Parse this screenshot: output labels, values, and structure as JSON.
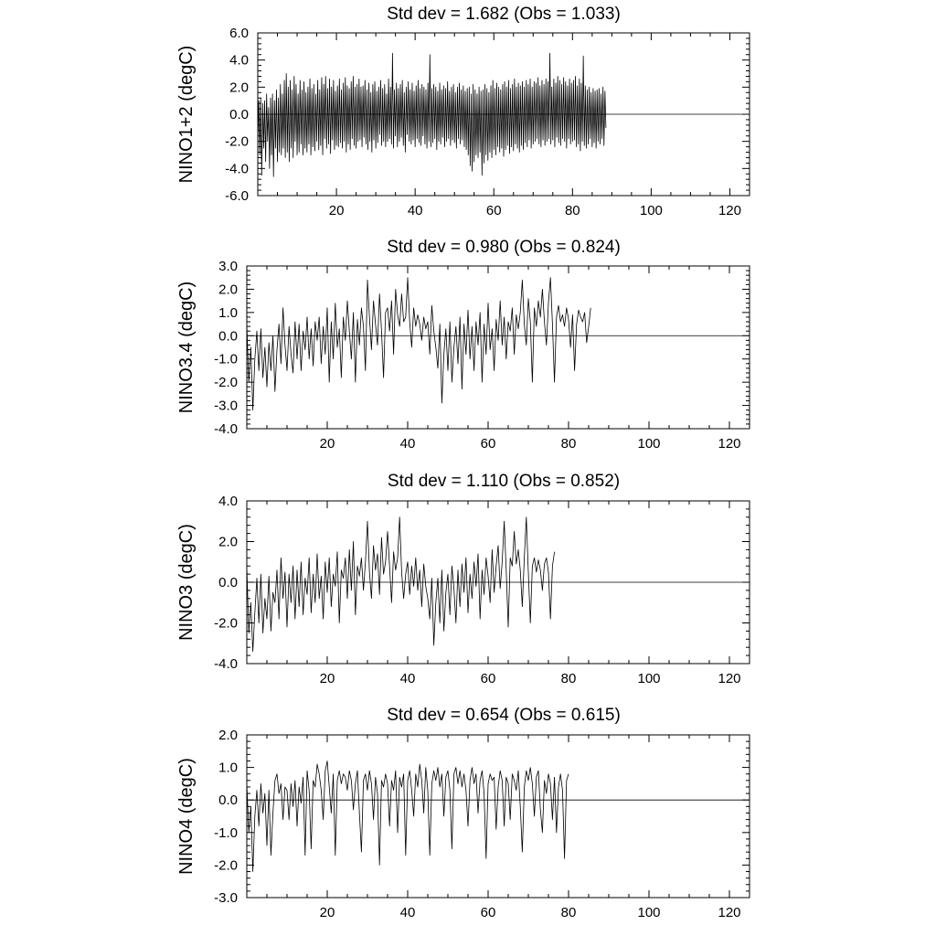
{
  "chart_data": [
    {
      "type": "line",
      "title": "Std dev = 1.682 (Obs = 1.033)",
      "xlabel": "",
      "ylabel": "NINO1+2 (degC)",
      "xlim": [
        0,
        125
      ],
      "ylim": [
        -6.0,
        6.0
      ],
      "x_ticks": [
        20,
        40,
        60,
        80,
        100,
        120
      ],
      "y_ticks": [
        "-6.0",
        "-4.0",
        "-2.0",
        "0.0",
        "2.0",
        "4.0",
        "6.0"
      ],
      "grid": false,
      "series": [
        {
          "x_start": 0,
          "x_step": 0.25,
          "values": [
            -2.0,
            1.0,
            -3.0,
            1.2,
            -4.5,
            0.8,
            -2.5,
            1.0,
            -3.5,
            1.5,
            -2.0,
            0.5,
            -4.0,
            1.2,
            -3.0,
            1.5,
            -4.6,
            1.0,
            -2.5,
            1.8,
            -3.5,
            1.2,
            -2.8,
            2.2,
            -3.0,
            1.5,
            -2.5,
            2.5,
            -3.2,
            3.0,
            -2.8,
            2.0,
            -3.5,
            2.5,
            -2.5,
            1.8,
            -3.2,
            2.8,
            -2.0,
            2.2,
            -3.0,
            1.5,
            -2.8,
            2.5,
            -2.2,
            1.8,
            -3.0,
            2.4,
            -2.5,
            1.6,
            -2.8,
            2.0,
            -2.2,
            2.6,
            -3.0,
            1.9,
            -2.4,
            2.2,
            -2.7,
            1.5,
            -2.0,
            2.5,
            -2.6,
            1.8,
            -2.3,
            2.7,
            -3.0,
            2.2,
            -1.8,
            2.8,
            -2.5,
            1.9,
            -2.2,
            2.6,
            -2.9,
            2.0,
            -1.9,
            2.5,
            -2.6,
            1.7,
            -2.3,
            2.1,
            -2.4,
            2.6,
            -2.1,
            1.8,
            -2.5,
            2.3,
            -2.0,
            2.7,
            -2.8,
            2.1,
            -2.2,
            1.9,
            -2.6,
            2.4,
            -1.8,
            2.8,
            -2.3,
            2.0,
            -2.5,
            2.2,
            -2.0,
            2.6,
            -1.9,
            2.0,
            -2.4,
            2.1,
            -1.7,
            2.5,
            -2.2,
            1.8,
            -2.6,
            2.3,
            -2.0,
            1.6,
            -2.8,
            2.2,
            -1.9,
            2.4,
            -2.5,
            1.7,
            -2.1,
            2.0,
            -1.5,
            2.5,
            -2.3,
            1.9,
            -2.0,
            2.2,
            -2.4,
            1.5,
            -2.0,
            2.6,
            -1.8,
            2.0,
            -2.2,
            4.5,
            -2.5,
            1.8,
            -1.6,
            2.3,
            -2.4,
            1.9,
            -2.0,
            2.2,
            -1.7,
            2.5,
            -2.3,
            1.6,
            -2.8,
            2.0,
            -1.5,
            2.4,
            -2.0,
            1.8,
            -2.2,
            2.3,
            -1.9,
            1.7,
            -2.4,
            2.1,
            -1.8,
            2.5,
            -2.1,
            1.9,
            -2.3,
            2.2,
            -1.6,
            2.0,
            -2.2,
            1.8,
            -2.5,
            2.3,
            -2.0,
            4.4,
            -2.4,
            1.9,
            -2.1,
            2.2,
            -1.8,
            2.0,
            -2.6,
            1.7,
            -2.0,
            2.3,
            -2.2,
            1.8,
            -1.7,
            2.1,
            -2.4,
            1.9,
            -2.0,
            2.4,
            -1.8,
            1.7,
            -2.3,
            2.0,
            -1.9,
            2.2,
            -2.1,
            1.6,
            -2.5,
            2.0,
            -1.8,
            2.3,
            -2.2,
            1.8,
            -1.9,
            2.1,
            -2.4,
            1.7,
            -2.6,
            1.9,
            -3.0,
            2.0,
            -3.8,
            1.5,
            -4.2,
            2.2,
            -3.5,
            1.8,
            -3.0,
            1.5,
            -3.2,
            2.0,
            -2.8,
            1.7,
            -4.5,
            1.8,
            -3.6,
            2.2,
            -3.0,
            1.9,
            -3.4,
            1.6,
            -2.8,
            2.1,
            -3.2,
            2.5,
            -2.6,
            1.9,
            -3.0,
            2.3,
            -2.4,
            2.0,
            -2.8,
            1.8,
            -2.5,
            2.2,
            -3.1,
            2.4,
            -2.6,
            2.0,
            -2.3,
            2.5,
            -2.9,
            1.9,
            -2.4,
            2.2,
            -2.7,
            2.6,
            -2.2,
            2.0,
            -2.5,
            2.3,
            -2.8,
            2.1,
            -2.3,
            2.4,
            -2.6,
            2.0,
            -2.1,
            2.5,
            -2.4,
            2.2,
            -1.9,
            2.6,
            -2.5,
            2.0,
            -2.2,
            2.4,
            -2.0,
            2.3,
            -1.8,
            2.7,
            -2.2,
            2.1,
            -2.4,
            2.5,
            -1.9,
            2.2,
            -2.3,
            2.6,
            -2.0,
            2.4,
            -1.8,
            4.5,
            -2.2,
            2.0,
            -1.9,
            2.6,
            -2.4,
            2.3,
            -1.7,
            2.8,
            -2.1,
            2.5,
            -2.3,
            2.2,
            -1.8,
            2.7,
            -2.0,
            2.4,
            -2.5,
            2.1,
            -1.8,
            2.6,
            -2.2,
            2.3,
            -2.0,
            2.5,
            -1.9,
            2.8,
            -2.4,
            2.1,
            -2.2,
            2.6,
            -2.7,
            2.3,
            -2.0,
            4.3,
            -2.3,
            2.1,
            -2.5,
            1.8,
            -2.2,
            2.0,
            -1.8,
            1.6,
            -2.4,
            1.9,
            -2.1,
            1.7,
            -2.5,
            1.8,
            -2.0,
            1.9,
            -2.2,
            1.5,
            -1.8,
            2.0,
            -2.3,
            1.7,
            -1.0
          ]
        }
      ]
    },
    {
      "type": "line",
      "title": "Std dev = 0.980 (Obs = 0.824)",
      "xlabel": "",
      "ylabel": "NINO3.4 (degC)",
      "xlim": [
        0,
        125
      ],
      "ylim": [
        -4.0,
        3.0
      ],
      "x_ticks": [
        20,
        40,
        60,
        80,
        100,
        120
      ],
      "y_ticks": [
        "-4.0",
        "-3.0",
        "-2.0",
        "-1.0",
        "0.0",
        "1.0",
        "2.0",
        "3.0"
      ],
      "grid": false,
      "series": [
        {
          "x_start": 0,
          "x_step": 0.5,
          "values": [
            0.5,
            -2.0,
            -0.5,
            -3.2,
            -1.0,
            0.2,
            -1.5,
            0.3,
            -1.8,
            -0.5,
            -2.2,
            -0.3,
            -1.5,
            0.0,
            -2.4,
            -0.6,
            0.5,
            -1.2,
            1.2,
            -0.4,
            -1.5,
            0.4,
            -0.8,
            -1.6,
            0.6,
            -1.0,
            0.5,
            -1.5,
            0.2,
            -0.6,
            0.8,
            -1.0,
            0.3,
            -1.3,
            0.6,
            -0.2,
            0.8,
            -1.2,
            0.4,
            -0.8,
            1.2,
            -2.0,
            0.6,
            -1.0,
            1.4,
            -0.5,
            0.3,
            -1.8,
            0.8,
            -0.2,
            1.5,
            0.2,
            -1.0,
            1.0,
            -2.0,
            0.7,
            -0.4,
            1.2,
            0.4,
            -1.5,
            2.4,
            0.8,
            -0.6,
            1.5,
            0.5,
            -0.4,
            1.8,
            0.2,
            -1.8,
            1.0,
            1.2,
            0.2,
            1.5,
            -0.8,
            2.0,
            0.9,
            0.4,
            1.8,
            0.6,
            0.8,
            2.5,
            0.6,
            -0.5,
            1.2,
            0.4,
            0.9,
            0.5,
            -0.2,
            0.8,
            0.3,
            0.6,
            -0.8,
            1.3,
            0.2,
            -0.5,
            -1.4,
            0.5,
            -2.9,
            -0.8,
            0.3,
            -1.5,
            0.6,
            -2.0,
            -0.5,
            0.4,
            -1.2,
            0.8,
            -2.3,
            0.5,
            -0.8,
            1.1,
            -1.0,
            0.4,
            -1.5,
            0.6,
            -0.4,
            1.0,
            -2.0,
            0.5,
            -0.8,
            1.4,
            -0.6,
            0.3,
            -1.5,
            0.7,
            -0.2,
            1.5,
            -0.4,
            0.8,
            -1.0,
            0.6,
            0.2,
            1.2,
            -0.8,
            0.9,
            0.3,
            1.0,
            2.4,
            0.5,
            -0.4,
            1.6,
            0.6,
            -2.0,
            1.2,
            0.4,
            1.5,
            0.8,
            2.0,
            0.6,
            -0.4,
            1.4,
            2.5,
            0.5,
            -2.0,
            0.8,
            1.3,
            0.6,
            0.9,
            0.4,
            1.2,
            0.7,
            -0.5,
            0.9,
            -1.5,
            0.5,
            1.1,
            0.8,
            0.6,
            1.0,
            -0.3,
            0.4,
            1.2
          ]
        }
      ]
    },
    {
      "type": "line",
      "title": "Std dev = 1.110 (Obs = 0.852)",
      "xlabel": "",
      "ylabel": "NINO3 (degC)",
      "xlim": [
        0,
        125
      ],
      "ylim": [
        -4.0,
        4.0
      ],
      "x_ticks": [
        20,
        40,
        60,
        80,
        100,
        120
      ],
      "y_ticks": [
        "-4.0",
        "-2.0",
        "0.0",
        "2.0",
        "4.0"
      ],
      "grid": false,
      "series": [
        {
          "x_start": 0,
          "x_step": 0.5,
          "values": [
            0.8,
            -2.5,
            -1.0,
            -3.4,
            -1.5,
            0.2,
            -2.0,
            0.4,
            -2.5,
            -0.8,
            -1.8,
            0.3,
            -2.4,
            -0.5,
            -1.0,
            0.6,
            -1.8,
            1.2,
            -0.8,
            0.5,
            -2.2,
            0.4,
            -1.0,
            0.8,
            -1.8,
            0.6,
            -1.2,
            1.0,
            -1.6,
            0.2,
            -0.6,
            1.2,
            -1.5,
            0.4,
            -1.0,
            1.4,
            -0.8,
            0.3,
            -1.8,
            1.0,
            -0.5,
            1.2,
            -1.2,
            0.4,
            -0.2,
            1.5,
            -2.0,
            0.6,
            0.2,
            1.2,
            -0.8,
            1.6,
            -0.4,
            2.0,
            -1.6,
            0.8,
            0.3,
            1.2,
            -0.4,
            1.0,
            3.0,
            0.5,
            -0.8,
            1.8,
            0.6,
            1.4,
            -0.6,
            2.2,
            0.4,
            1.0,
            2.5,
            0.8,
            -1.0,
            1.5,
            0.6,
            1.2,
            3.2,
            0.5,
            -0.8,
            0.4,
            1.0,
            -0.6,
            0.8,
            -0.2,
            1.2,
            -0.4,
            0.6,
            -1.2,
            0.9,
            -0.2,
            -0.8,
            -1.8,
            0.2,
            -3.1,
            -1.0,
            0.2,
            -2.0,
            0.6,
            -2.4,
            -0.5,
            0.4,
            -1.6,
            0.8,
            -0.3,
            -2.0,
            0.6,
            -1.2,
            0.9,
            -0.5,
            1.2,
            -1.5,
            0.4,
            -0.8,
            1.0,
            -0.2,
            1.4,
            -1.8,
            0.6,
            -0.6,
            1.2,
            0.3,
            -1.0,
            1.6,
            -0.5,
            0.8,
            1.8,
            -0.3,
            1.0,
            3.0,
            0.6,
            -2.2,
            1.2,
            0.8,
            2.5,
            0.9,
            1.6,
            0.6,
            -1.2,
            1.2,
            3.2,
            0.5,
            -2.0,
            0.8,
            1.2,
            0.5,
            1.1,
            0.6,
            -0.4,
            0.9,
            1.2,
            0.5,
            -1.8,
            0.8,
            1.5
          ]
        }
      ]
    },
    {
      "type": "line",
      "title": "Std dev = 0.654 (Obs = 0.615)",
      "xlabel": "",
      "ylabel": "NINO4 (degC)",
      "xlim": [
        0,
        125
      ],
      "ylim": [
        -3.0,
        2.0
      ],
      "x_ticks": [
        20,
        40,
        60,
        80,
        100,
        120
      ],
      "y_ticks": [
        "-3.0",
        "-2.0",
        "-1.0",
        "0.0",
        "1.0",
        "2.0"
      ],
      "grid": false,
      "series": [
        {
          "x_start": 0,
          "x_step": 0.5,
          "values": [
            0.5,
            -1.0,
            -0.2,
            -2.2,
            -0.5,
            0.3,
            -0.8,
            0.5,
            -0.4,
            0.2,
            -1.4,
            0.3,
            -1.7,
            -0.4,
            0.6,
            0.8,
            0.2,
            0.5,
            -0.6,
            0.4,
            0.3,
            -0.6,
            0.5,
            -0.2,
            0.6,
            -0.8,
            0.4,
            -0.1,
            0.7,
            -1.7,
            0.9,
            0.3,
            -1.5,
            0.6,
            0.4,
            1.1,
            0.8,
            0.3,
            -0.6,
            0.9,
            1.2,
            0.4,
            -0.4,
            0.8,
            -1.7,
            0.6,
            0.9,
            0.5,
            0.8,
            0.7,
            0.3,
            0.9,
            0.6,
            -0.3,
            0.5,
            0.9,
            -0.4,
            -1.6,
            0.6,
            0.8,
            0.3,
            0.9,
            0.5,
            -0.6,
            0.7,
            0.2,
            -2.0,
            0.6,
            0.4,
            0.8,
            0.5,
            -0.8,
            0.6,
            0.3,
            0.9,
            -1.0,
            0.7,
            0.4,
            0.8,
            -1.7,
            0.6,
            0.9,
            0.3,
            -0.5,
            0.8,
            0.4,
            1.1,
            0.6,
            -0.4,
            1.0,
            0.3,
            -1.7,
            0.5,
            0.9,
            0.6,
            1.0,
            0.4,
            0.8,
            -0.5,
            0.7,
            0.9,
            0.3,
            -1.5,
            0.8,
            1.0,
            0.5,
            0.9,
            0.4,
            0.8,
            0.3,
            -0.8,
            0.6,
            1.0,
            0.5,
            0.8,
            -0.4,
            0.6,
            0.9,
            0.2,
            -1.8,
            0.5,
            0.8,
            0.6,
            0.7,
            -0.9,
            0.4,
            0.9,
            0.6,
            -0.8,
            0.7,
            0.5,
            -0.6,
            0.8,
            0.6,
            0.3,
            0.9,
            -0.2,
            -1.6,
            0.4,
            0.9,
            0.6,
            1.0,
            0.5,
            -0.5,
            0.7,
            0.9,
            -0.3,
            -1.0,
            0.6,
            0.2,
            0.8,
            0.5,
            -0.6,
            0.7,
            -1.0,
            0.4,
            0.8,
            0.3,
            -1.8,
            0.6,
            0.8
          ]
        }
      ]
    }
  ]
}
